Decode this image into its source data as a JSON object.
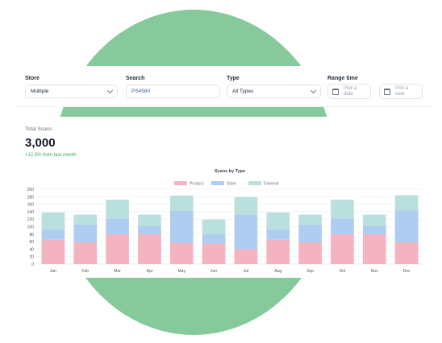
{
  "colors": {
    "background_circle": "#86c99a",
    "product": "#f4b3c0",
    "store": "#aecdf1",
    "external": "#b9e0dd",
    "accent_green": "#3aa561"
  },
  "filters": {
    "store": {
      "label": "Store",
      "value": "Multiple"
    },
    "search": {
      "label": "Search",
      "value": "PS4580"
    },
    "type": {
      "label": "Type",
      "value": "All Types"
    },
    "range": {
      "label": "Range time",
      "start_placeholder_1": "Pick a",
      "start_placeholder_2": "date",
      "end_placeholder_1": "Pick a",
      "end_placeholder_2": "date",
      "separator": "-"
    }
  },
  "summary": {
    "label": "Total Scans",
    "value": "3,000",
    "change": "+12.5% from last month"
  },
  "chart_data": {
    "type": "bar",
    "stacked": true,
    "title": "Scans by Type",
    "categories": [
      "Jan",
      "Feb",
      "Mar",
      "Apr",
      "May",
      "Jun",
      "Jul",
      "Aug",
      "Sep",
      "Oct",
      "Nov",
      "Dec"
    ],
    "series": [
      {
        "name": "Product",
        "color": "#f4b3c0",
        "values": [
          65,
          58,
          80,
          80,
          57,
          55,
          40,
          65,
          58,
          80,
          80,
          58
        ]
      },
      {
        "name": "Store",
        "color": "#aecdf1",
        "values": [
          28,
          48,
          42,
          22,
          85,
          25,
          92,
          28,
          48,
          42,
          22,
          85
        ]
      },
      {
        "name": "External",
        "color": "#b9e0dd",
        "values": [
          45,
          26,
          50,
          30,
          41,
          39,
          47,
          45,
          26,
          50,
          30,
          41
        ]
      }
    ],
    "ylim": [
      0,
      200
    ],
    "yticks": [
      0,
      20,
      40,
      60,
      80,
      100,
      120,
      140,
      160,
      180,
      200
    ],
    "grid": true,
    "legend_position": "top"
  }
}
